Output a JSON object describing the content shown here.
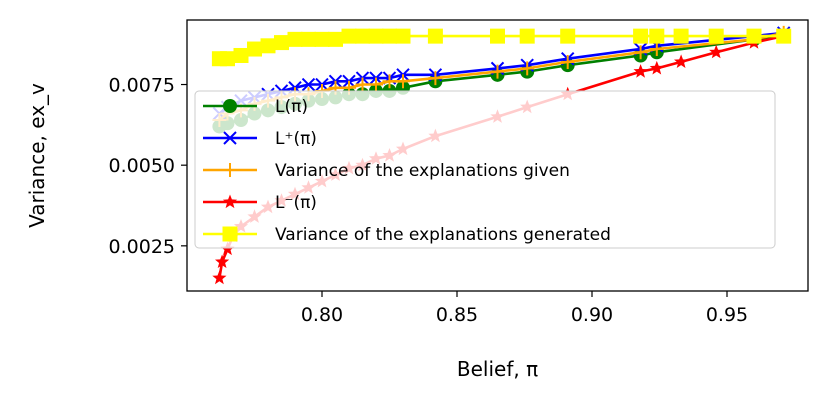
{
  "chart_data": {
    "type": "line",
    "xlabel": "Belief, π",
    "ylabel": "Variance, ex_v",
    "xlim": [
      0.75,
      0.98
    ],
    "ylim": [
      0.0011,
      0.0095
    ],
    "xticks": [
      0.8,
      0.85,
      0.9,
      0.95
    ],
    "xtick_labels": [
      "0.80",
      "0.85",
      "0.90",
      "0.95"
    ],
    "yticks": [
      0.0025,
      0.005,
      0.0075
    ],
    "ytick_labels": [
      "0.0025",
      "0.0050",
      "0.0075"
    ],
    "grid": false,
    "legend_position": "center-right",
    "series": [
      {
        "name": "L(π)",
        "color": "#008000",
        "marker": "circle",
        "x": [
          0.762,
          0.765,
          0.77,
          0.775,
          0.78,
          0.785,
          0.79,
          0.795,
          0.8,
          0.805,
          0.81,
          0.815,
          0.82,
          0.825,
          0.83,
          0.842,
          0.865,
          0.876,
          0.891,
          0.918,
          0.924,
          0.96,
          0.971
        ],
        "y": [
          0.0062,
          0.0063,
          0.0064,
          0.0066,
          0.0067,
          0.0068,
          0.0069,
          0.007,
          0.00705,
          0.0071,
          0.0072,
          0.0072,
          0.0073,
          0.0073,
          0.0074,
          0.0076,
          0.0078,
          0.0079,
          0.0081,
          0.0084,
          0.0085,
          0.0089,
          0.009
        ]
      },
      {
        "name": "L⁺(π)",
        "color": "#0000ff",
        "marker": "x",
        "x": [
          0.762,
          0.765,
          0.77,
          0.775,
          0.78,
          0.785,
          0.79,
          0.795,
          0.8,
          0.805,
          0.81,
          0.815,
          0.82,
          0.825,
          0.83,
          0.842,
          0.865,
          0.876,
          0.891,
          0.918,
          0.924,
          0.96,
          0.971
        ],
        "y": [
          0.0066,
          0.0068,
          0.007,
          0.0071,
          0.0072,
          0.0073,
          0.0074,
          0.0075,
          0.0075,
          0.0076,
          0.0076,
          0.0077,
          0.0077,
          0.0077,
          0.0078,
          0.0078,
          0.008,
          0.0081,
          0.0083,
          0.0086,
          0.0087,
          0.009,
          0.0091
        ]
      },
      {
        "name": "Variance of the explanations given",
        "color": "#ffa500",
        "marker": "plus",
        "x": [
          0.762,
          0.765,
          0.77,
          0.775,
          0.78,
          0.785,
          0.79,
          0.795,
          0.8,
          0.805,
          0.81,
          0.815,
          0.82,
          0.825,
          0.83,
          0.842,
          0.865,
          0.876,
          0.891,
          0.918,
          0.924,
          0.96,
          0.971
        ],
        "y": [
          0.0064,
          0.0066,
          0.0067,
          0.0069,
          0.007,
          0.0071,
          0.0072,
          0.0072,
          0.0073,
          0.0074,
          0.0074,
          0.0075,
          0.0075,
          0.0076,
          0.0076,
          0.0077,
          0.0079,
          0.008,
          0.0082,
          0.0085,
          0.0086,
          0.0089,
          0.0091
        ]
      },
      {
        "name": "L⁻(π)",
        "color": "#ff0000",
        "marker": "star",
        "x": [
          0.762,
          0.763,
          0.765,
          0.767,
          0.77,
          0.775,
          0.78,
          0.785,
          0.79,
          0.795,
          0.8,
          0.805,
          0.81,
          0.815,
          0.82,
          0.825,
          0.83,
          0.842,
          0.865,
          0.876,
          0.891,
          0.918,
          0.924,
          0.933,
          0.946,
          0.96,
          0.971
        ],
        "y": [
          0.0015,
          0.002,
          0.0024,
          0.0028,
          0.0031,
          0.0034,
          0.0037,
          0.0039,
          0.0041,
          0.0043,
          0.0045,
          0.0047,
          0.0049,
          0.005,
          0.0052,
          0.0053,
          0.0055,
          0.0059,
          0.0065,
          0.0068,
          0.0072,
          0.0079,
          0.008,
          0.0082,
          0.0085,
          0.0088,
          0.009
        ]
      },
      {
        "name": "Variance of the explanations generated",
        "color": "#ffff00",
        "marker": "square",
        "x": [
          0.762,
          0.765,
          0.77,
          0.775,
          0.78,
          0.785,
          0.79,
          0.795,
          0.8,
          0.805,
          0.81,
          0.815,
          0.82,
          0.825,
          0.83,
          0.842,
          0.865,
          0.876,
          0.891,
          0.918,
          0.924,
          0.933,
          0.946,
          0.96,
          0.971
        ],
        "y": [
          0.0083,
          0.0083,
          0.0084,
          0.0086,
          0.0087,
          0.0088,
          0.0089,
          0.0089,
          0.0089,
          0.0089,
          0.009,
          0.009,
          0.009,
          0.009,
          0.009,
          0.009,
          0.009,
          0.009,
          0.009,
          0.009,
          0.009,
          0.009,
          0.009,
          0.009,
          0.009
        ]
      }
    ]
  }
}
